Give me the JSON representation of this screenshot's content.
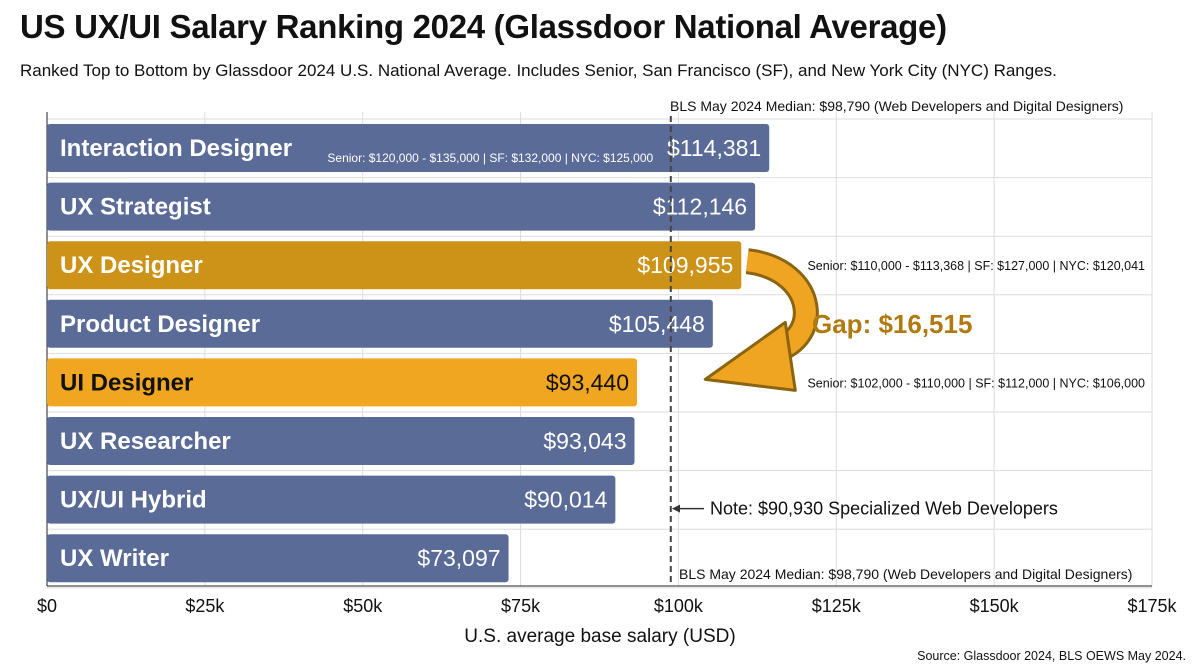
{
  "title": "US UX/UI Salary Ranking 2024 (Glassdoor National Average)",
  "subtitle": "Ranked Top to Bottom by Glassdoor 2024 U.S. National Average. Includes Senior, San Francisco (SF), and New York City (NYC) Ranges.",
  "source": "Source: Glassdoor 2024, BLS OEWS May 2024.",
  "colors": {
    "blue": "#5a6b98",
    "gold": "#cc9318",
    "orange": "#f0a620",
    "arrow": "#f0a522",
    "gap_text": "#b07a10",
    "grid": "#dddddd"
  },
  "chart_data": {
    "type": "bar",
    "orientation": "horizontal",
    "categories": [
      "Interaction Designer",
      "UX Strategist",
      "UX Designer",
      "Product Designer",
      "UI Designer",
      "UX Researcher",
      "UX/UI Hybrid",
      "UX Writer"
    ],
    "values": [
      114381,
      112146,
      109955,
      105448,
      93440,
      93043,
      90014,
      73097
    ],
    "value_labels": [
      "$114,381",
      "$112,146",
      "$109,955",
      "$105,448",
      "$93,440",
      "$93,043",
      "$90,014",
      "$73,097"
    ],
    "bar_colors": [
      "blue",
      "blue",
      "gold",
      "blue",
      "orange",
      "blue",
      "blue",
      "blue"
    ],
    "xlabel": "U.S. average base salary (USD)",
    "xlim": [
      0,
      175000
    ],
    "xticks": [
      0,
      25000,
      50000,
      75000,
      100000,
      125000,
      150000,
      175000
    ],
    "xtick_labels": [
      "$0",
      "$25k",
      "$50k",
      "$75k",
      "$100k",
      "$125k",
      "$150k",
      "$175k"
    ],
    "grid": true,
    "reference_line": {
      "value": 98790,
      "label_top": "BLS May 2024 Median: $98,790 (Web Developers and Digital Designers)",
      "label_bottom": "BLS May 2024 Median: $98,790 (Web Developers and Digital Designers)"
    },
    "annotations": [
      {
        "category": "Interaction Designer",
        "text": "Senior: $120,000 - $135,000 | SF: $132,000 | NYC: $125,000",
        "placement": "inside"
      },
      {
        "category": "UX Designer",
        "text": "Senior: $110,000 - $113,368 | SF: $127,000 | NYC: $120,041",
        "placement": "outside"
      },
      {
        "category": "UI Designer",
        "text": "Senior: $102,000 - $110,000 | SF: $112,000 | NYC: $106,000",
        "placement": "outside"
      }
    ],
    "gap": {
      "from": "UX Designer",
      "to": "UI Designer",
      "value": 16515,
      "label": "Gap: $16,515"
    },
    "note": {
      "text": "Note: $90,930 Specialized Web Developers",
      "category": "UX/UI Hybrid"
    }
  }
}
